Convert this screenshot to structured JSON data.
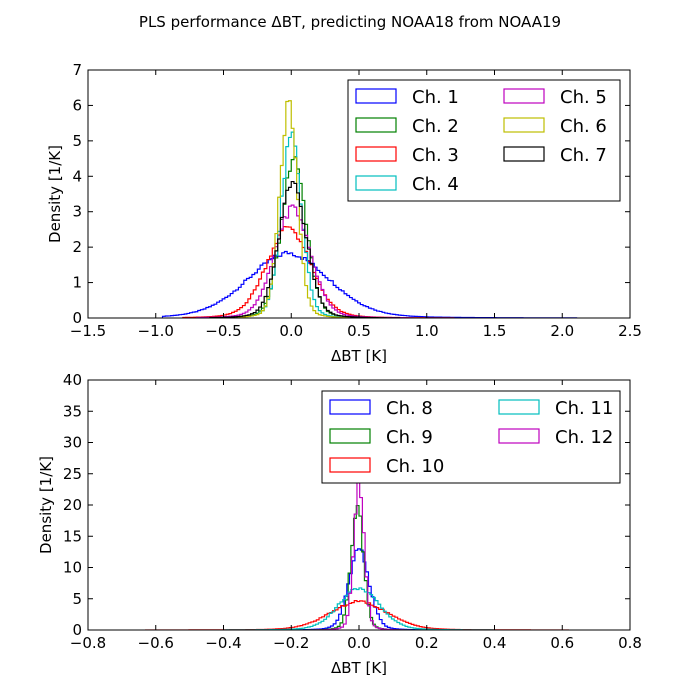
{
  "title": "PLS performance ΔBT, predicting NOAA18 from NOAA19",
  "chart_data": [
    {
      "type": "histogram-step",
      "xlabel": "ΔBT [K]",
      "ylabel": "Density [1/K]",
      "xlim": [
        -1.5,
        2.5
      ],
      "ylim": [
        0,
        7
      ],
      "xticks": [
        -1.5,
        -1.0,
        -0.5,
        0.0,
        0.5,
        1.0,
        1.5,
        2.0,
        2.5
      ],
      "xtick_labels": [
        "−1.5",
        "−1.0",
        "−0.5",
        "0.0",
        "0.5",
        "1.0",
        "1.5",
        "2.0",
        "2.5"
      ],
      "yticks": [
        0,
        1,
        2,
        3,
        4,
        5,
        6,
        7
      ],
      "ytick_labels": [
        "0",
        "1",
        "2",
        "3",
        "4",
        "5",
        "6",
        "7"
      ],
      "legend_position": "top-right",
      "legend_columns": 2,
      "bin_width": 0.02,
      "series": [
        {
          "name": "Ch. 1",
          "color": "#0000ff",
          "peak": 1.85,
          "sigma": 0.3,
          "center": -0.02,
          "range": [
            -0.95,
            2.1
          ]
        },
        {
          "name": "Ch. 2",
          "color": "#008000",
          "peak": 4.6,
          "sigma": 0.09,
          "center": 0.02,
          "range": [
            -0.6,
            0.8
          ]
        },
        {
          "name": "Ch. 3",
          "color": "#ff0000",
          "peak": 2.6,
          "sigma": 0.16,
          "center": -0.02,
          "range": [
            -0.8,
            1.2
          ]
        },
        {
          "name": "Ch. 4",
          "color": "#00bfbf",
          "peak": 5.25,
          "sigma": 0.075,
          "center": 0.0,
          "range": [
            -0.6,
            0.8
          ]
        },
        {
          "name": "Ch. 5",
          "color": "#bf00bf",
          "peak": 3.15,
          "sigma": 0.13,
          "center": 0.01,
          "range": [
            -0.7,
            0.9
          ]
        },
        {
          "name": "Ch. 6",
          "color": "#bfbf00",
          "peak": 6.05,
          "sigma": 0.065,
          "center": -0.02,
          "range": [
            -0.6,
            0.7
          ]
        },
        {
          "name": "Ch. 7",
          "color": "#000000",
          "peak": 3.9,
          "sigma": 0.1,
          "center": 0.01,
          "range": [
            -0.6,
            0.8
          ]
        }
      ]
    },
    {
      "type": "histogram-step",
      "xlabel": "ΔBT [K]",
      "ylabel": "Density [1/K]",
      "xlim": [
        -0.8,
        0.8
      ],
      "ylim": [
        0,
        40
      ],
      "xticks": [
        -0.8,
        -0.6,
        -0.4,
        -0.2,
        0.0,
        0.2,
        0.4,
        0.6,
        0.8
      ],
      "xtick_labels": [
        "−0.8",
        "−0.6",
        "−0.4",
        "−0.2",
        "0.0",
        "0.2",
        "0.4",
        "0.6",
        "0.8"
      ],
      "yticks": [
        0,
        5,
        10,
        15,
        20,
        25,
        30,
        35,
        40
      ],
      "ytick_labels": [
        "0",
        "5",
        "10",
        "15",
        "20",
        "25",
        "30",
        "35",
        "40"
      ],
      "legend_position": "top-right",
      "legend_columns": 2,
      "bin_width": 0.008,
      "series": [
        {
          "name": "Ch. 8",
          "color": "#0000ff",
          "peak": 13.0,
          "sigma": 0.03,
          "center": 0.0,
          "range": [
            -0.3,
            0.3
          ]
        },
        {
          "name": "Ch. 9",
          "color": "#008000",
          "peak": 20.5,
          "sigma": 0.018,
          "center": -0.005,
          "range": [
            -0.2,
            0.2
          ]
        },
        {
          "name": "Ch. 10",
          "color": "#ff0000",
          "peak": 4.6,
          "sigma": 0.085,
          "center": 0.0,
          "range": [
            -0.63,
            0.62
          ]
        },
        {
          "name": "Ch. 11",
          "color": "#00bfbf",
          "peak": 6.8,
          "sigma": 0.06,
          "center": 0.0,
          "range": [
            -0.4,
            0.4
          ]
        },
        {
          "name": "Ch. 12",
          "color": "#bf00bf",
          "peak": 24.5,
          "sigma": 0.015,
          "center": 0.0,
          "range": [
            -0.15,
            0.15
          ]
        }
      ]
    }
  ]
}
